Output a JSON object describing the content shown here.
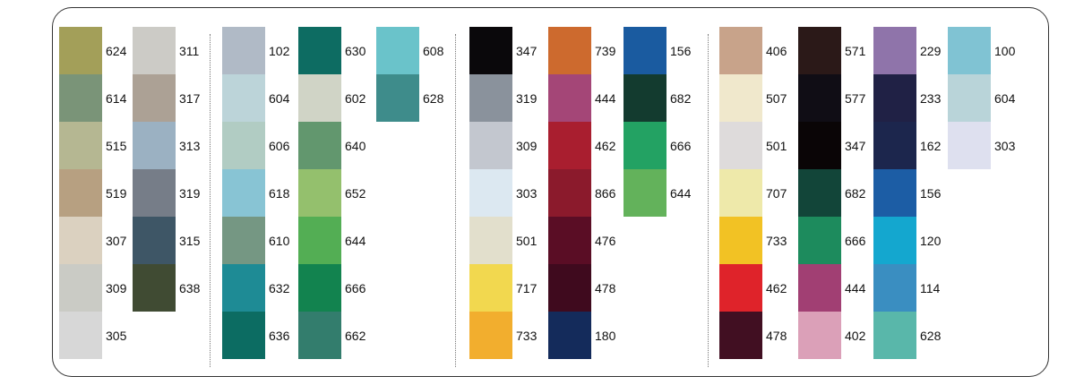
{
  "columns": [
    {
      "swatches": [
        {
          "code": "624",
          "color": "#a39f59"
        },
        {
          "code": "614",
          "color": "#7a9478"
        },
        {
          "code": "515",
          "color": "#b5b792"
        },
        {
          "code": "519",
          "color": "#b7a081"
        },
        {
          "code": "307",
          "color": "#dbd1c0"
        },
        {
          "code": "309",
          "color": "#cacbc5"
        },
        {
          "code": "305",
          "color": "#d7d7d7"
        }
      ]
    },
    {
      "swatches": [
        {
          "code": "311",
          "color": "#cccbc6"
        },
        {
          "code": "317",
          "color": "#aca195"
        },
        {
          "code": "313",
          "color": "#9bb1c2"
        },
        {
          "code": "319",
          "color": "#767d88"
        },
        {
          "code": "315",
          "color": "#3e5666"
        },
        {
          "code": "638",
          "color": "#404b33"
        }
      ]
    },
    {
      "swatches": [
        {
          "code": "102",
          "color": "#b0bac6"
        },
        {
          "code": "604",
          "color": "#bcd4d9"
        },
        {
          "code": "606",
          "color": "#b1ccc3"
        },
        {
          "code": "618",
          "color": "#88c4d4"
        },
        {
          "code": "610",
          "color": "#759783"
        },
        {
          "code": "632",
          "color": "#1e8b95"
        },
        {
          "code": "636",
          "color": "#0c6c62"
        }
      ]
    },
    {
      "swatches": [
        {
          "code": "630",
          "color": "#0d6c62"
        },
        {
          "code": "602",
          "color": "#d0d4c6"
        },
        {
          "code": "640",
          "color": "#62976e"
        },
        {
          "code": "652",
          "color": "#94c06d"
        },
        {
          "code": "644",
          "color": "#53ae54"
        },
        {
          "code": "666",
          "color": "#12834f"
        },
        {
          "code": "662",
          "color": "#337d6d"
        }
      ]
    },
    {
      "swatches": [
        {
          "code": "608",
          "color": "#6ac3ca"
        },
        {
          "code": "628",
          "color": "#3e8c8b"
        }
      ]
    },
    {
      "swatches": [
        {
          "code": "347",
          "color": "#0a080b"
        },
        {
          "code": "319",
          "color": "#8a929c"
        },
        {
          "code": "309",
          "color": "#c3c7cf"
        },
        {
          "code": "303",
          "color": "#dce8f1"
        },
        {
          "code": "501",
          "color": "#e2dfcc"
        },
        {
          "code": "717",
          "color": "#f2d84f"
        },
        {
          "code": "733",
          "color": "#f2ae2e"
        }
      ]
    },
    {
      "swatches": [
        {
          "code": "739",
          "color": "#cd6a2e"
        },
        {
          "code": "444",
          "color": "#a44677"
        },
        {
          "code": "462",
          "color": "#a91e2f"
        },
        {
          "code": "866",
          "color": "#8b1a2c"
        },
        {
          "code": "476",
          "color": "#5a0d25"
        },
        {
          "code": "478",
          "color": "#3f0a1e"
        },
        {
          "code": "180",
          "color": "#142b5b"
        }
      ]
    },
    {
      "swatches": [
        {
          "code": "156",
          "color": "#1a5ba0"
        },
        {
          "code": "682",
          "color": "#133b2f"
        },
        {
          "code": "666",
          "color": "#23a263"
        },
        {
          "code": "644",
          "color": "#63b25b"
        }
      ]
    },
    {
      "swatches": [
        {
          "code": "406",
          "color": "#c8a38a"
        },
        {
          "code": "507",
          "color": "#f0e8cc"
        },
        {
          "code": "501",
          "color": "#dedbdb"
        },
        {
          "code": "707",
          "color": "#eee9aa"
        },
        {
          "code": "733",
          "color": "#f2c224"
        },
        {
          "code": "462",
          "color": "#df232a"
        },
        {
          "code": "478",
          "color": "#410f22"
        }
      ]
    },
    {
      "swatches": [
        {
          "code": "571",
          "color": "#2b1918"
        },
        {
          "code": "577",
          "color": "#100d15"
        },
        {
          "code": "347",
          "color": "#0a0506"
        },
        {
          "code": "682",
          "color": "#124539"
        },
        {
          "code": "666",
          "color": "#1d8b5d"
        },
        {
          "code": "444",
          "color": "#a13f73"
        },
        {
          "code": "402",
          "color": "#dba0b8"
        }
      ]
    },
    {
      "swatches": [
        {
          "code": "229",
          "color": "#8f74aa"
        },
        {
          "code": "233",
          "color": "#202145"
        },
        {
          "code": "162",
          "color": "#1c264d"
        },
        {
          "code": "156",
          "color": "#1c5da5"
        },
        {
          "code": "120",
          "color": "#14a7cf"
        },
        {
          "code": "114",
          "color": "#3a8ec1"
        },
        {
          "code": "628",
          "color": "#59b7aa"
        }
      ]
    },
    {
      "swatches": [
        {
          "code": "100",
          "color": "#80c3d3"
        },
        {
          "code": "604",
          "color": "#b9d4d9"
        },
        {
          "code": "303",
          "color": "#dee0ef"
        }
      ]
    }
  ]
}
